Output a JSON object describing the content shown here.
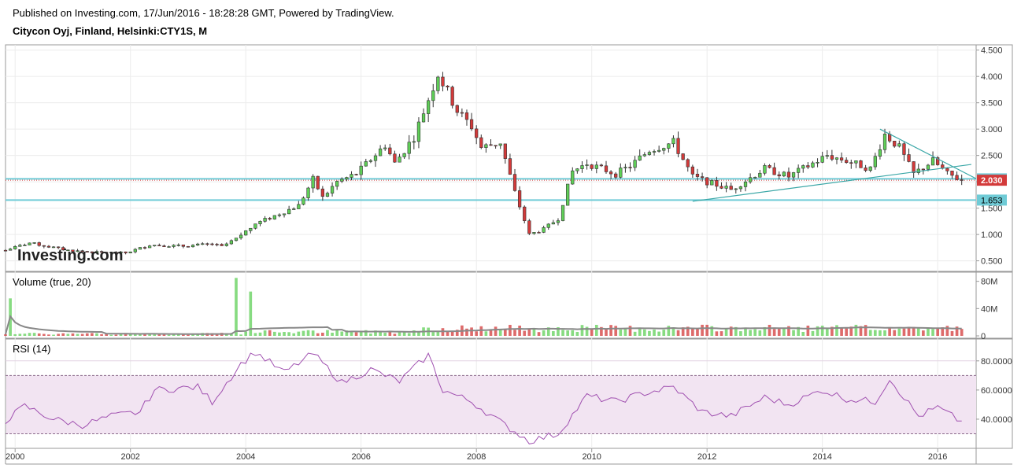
{
  "header": {
    "published": "Published on Investing.com, 17/Jun/2016 - 18:28:28 GMT, Powered by TradingView.",
    "symbol": "Citycon Oyj, Finland, Helsinki:CTY1S, M"
  },
  "watermark": "Investing.com",
  "colors": {
    "up": "#5fcf57",
    "down": "#d33a3a",
    "hline": "#6fcbd6",
    "trendline": "#3aa7a7",
    "rsi_line": "#a050b0",
    "rsi_band": "#f2e4f2",
    "volume_ma": "#888888"
  },
  "chart_data": [
    {
      "type": "candlestick",
      "interval": "monthly",
      "y_ticks": [
        "4.500",
        "4.000",
        "3.500",
        "3.000",
        "2.500",
        "2.000",
        "1.500",
        "1.000",
        "0.500"
      ],
      "ylim": [
        0.3,
        4.6
      ],
      "x_ticks": [
        "2000",
        "2002",
        "2004",
        "2006",
        "2008",
        "2010",
        "2012",
        "2014",
        "2016"
      ],
      "xlim": [
        "1999-11",
        "2016-09"
      ],
      "horizontal_lines": [
        {
          "value": 2.056,
          "label": "2.056"
        },
        {
          "value": 1.653,
          "label": "1.653"
        }
      ],
      "last_price": {
        "value": 2.03,
        "label": "2.030"
      },
      "trendlines": [
        {
          "from": [
            "2011-10",
            1.63
          ],
          "to": [
            "2016-08",
            2.33
          ]
        },
        {
          "from": [
            "2015-01",
            3.0
          ],
          "to": [
            "2016-09",
            2.06
          ]
        }
      ],
      "close_anchors": [
        [
          "1999-11",
          0.7
        ],
        [
          "2000-04",
          0.84
        ],
        [
          "2000-12",
          0.7
        ],
        [
          "2001-06",
          0.66
        ],
        [
          "2001-12",
          0.65
        ],
        [
          "2002-05",
          0.8
        ],
        [
          "2002-12",
          0.78
        ],
        [
          "2003-06",
          0.82
        ],
        [
          "2003-08",
          0.77
        ],
        [
          "2003-11",
          0.92
        ],
        [
          "2004-03",
          1.2
        ],
        [
          "2004-12",
          1.55
        ],
        [
          "2005-03",
          2.05
        ],
        [
          "2005-05",
          1.7
        ],
        [
          "2005-08",
          2.0
        ],
        [
          "2005-12",
          2.15
        ],
        [
          "2006-06",
          2.7
        ],
        [
          "2006-08",
          2.35
        ],
        [
          "2006-12",
          2.85
        ],
        [
          "2007-05",
          4.05
        ],
        [
          "2007-09",
          3.35
        ],
        [
          "2007-12",
          3.05
        ],
        [
          "2008-02",
          2.65
        ],
        [
          "2008-06",
          2.75
        ],
        [
          "2008-09",
          1.8
        ],
        [
          "2008-12",
          1.0
        ],
        [
          "2009-03",
          1.1
        ],
        [
          "2009-06",
          1.3
        ],
        [
          "2009-09",
          2.2
        ],
        [
          "2009-12",
          2.35
        ],
        [
          "2010-06",
          2.15
        ],
        [
          "2010-09",
          2.3
        ],
        [
          "2011-01",
          2.6
        ],
        [
          "2011-06",
          2.75
        ],
        [
          "2011-10",
          2.1
        ],
        [
          "2012-01",
          2.0
        ],
        [
          "2012-06",
          1.85
        ],
        [
          "2013-01",
          2.25
        ],
        [
          "2013-06",
          2.1
        ],
        [
          "2014-02",
          2.5
        ],
        [
          "2014-06",
          2.4
        ],
        [
          "2014-11",
          2.25
        ],
        [
          "2015-02",
          2.9
        ],
        [
          "2015-05",
          2.65
        ],
        [
          "2015-08",
          2.15
        ],
        [
          "2015-12",
          2.4
        ],
        [
          "2016-03",
          2.15
        ],
        [
          "2016-06",
          2.03
        ]
      ]
    },
    {
      "type": "bar",
      "title": "Volume (true, 20)",
      "y_ticks": [
        "80M",
        "40M",
        "0"
      ],
      "ylim": [
        0,
        90
      ],
      "spikes_million": [
        [
          "1999-12",
          55
        ],
        [
          "2003-11",
          85
        ],
        [
          "2004-02",
          65
        ]
      ]
    },
    {
      "type": "line",
      "title": "RSI (14)",
      "y_ticks": [
        "80.0000",
        "60.0000",
        "40.0000"
      ],
      "ylim": [
        20,
        95
      ],
      "band": [
        30,
        70
      ],
      "anchors": [
        [
          "1999-11",
          39
        ],
        [
          "2000-03",
          49
        ],
        [
          "2000-09",
          40
        ],
        [
          "2001-03",
          36
        ],
        [
          "2001-09",
          42
        ],
        [
          "2002-03",
          45
        ],
        [
          "2002-06",
          60
        ],
        [
          "2003-03",
          62
        ],
        [
          "2003-06",
          52
        ],
        [
          "2003-12",
          78
        ],
        [
          "2004-03",
          86
        ],
        [
          "2004-09",
          72
        ],
        [
          "2005-03",
          85
        ],
        [
          "2005-09",
          65
        ],
        [
          "2006-03",
          74
        ],
        [
          "2006-09",
          66
        ],
        [
          "2007-03",
          84
        ],
        [
          "2007-06",
          60
        ],
        [
          "2007-12",
          52
        ],
        [
          "2008-06",
          38
        ],
        [
          "2008-12",
          25
        ],
        [
          "2009-06",
          30
        ],
        [
          "2009-12",
          56
        ],
        [
          "2010-06",
          52
        ],
        [
          "2010-12",
          58
        ],
        [
          "2011-06",
          62
        ],
        [
          "2011-12",
          45
        ],
        [
          "2012-06",
          42
        ],
        [
          "2013-01",
          55
        ],
        [
          "2013-06",
          50
        ],
        [
          "2014-01",
          60
        ],
        [
          "2014-06",
          54
        ],
        [
          "2014-12",
          52
        ],
        [
          "2015-03",
          68
        ],
        [
          "2015-09",
          42
        ],
        [
          "2016-01",
          48
        ],
        [
          "2016-06",
          38
        ]
      ]
    }
  ]
}
